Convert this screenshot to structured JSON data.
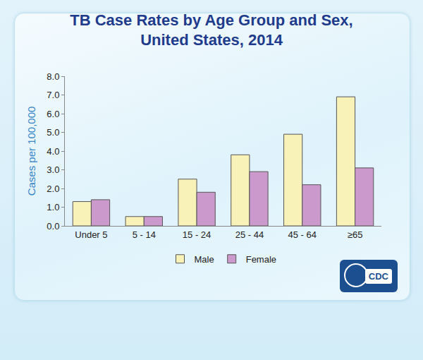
{
  "chart_data": {
    "type": "bar",
    "title": "TB Case Rates by Age Group and Sex,\nUnited States, 2014",
    "y_label": "Cases per 100,000",
    "categories": [
      "Under 5",
      "5 - 14",
      "15 - 24",
      "25 - 44",
      "45 - 64",
      "≥65"
    ],
    "series": [
      {
        "name": "Male",
        "color": "#f8f2b8",
        "values": [
          1.3,
          0.5,
          2.5,
          3.8,
          4.9,
          6.9
        ]
      },
      {
        "name": "Female",
        "color": "#cc99cc",
        "values": [
          1.4,
          0.5,
          1.8,
          2.9,
          2.2,
          3.1
        ]
      }
    ],
    "ylim": [
      0,
      8
    ],
    "yticks": [
      {
        "value": 0,
        "label": "0.0"
      },
      {
        "value": 1,
        "label": "1.0"
      },
      {
        "value": 2,
        "label": "2.0"
      },
      {
        "value": 3,
        "label": "3.0"
      },
      {
        "value": 4,
        "label": "4.0"
      },
      {
        "value": 5,
        "label": "5.0"
      },
      {
        "value": 6,
        "label": "6.0"
      },
      {
        "value": 7,
        "label": "7.0"
      },
      {
        "value": 8,
        "label": "8.0"
      }
    ],
    "grid": false,
    "legend": "bottom"
  },
  "logo": {
    "text": "CDC"
  }
}
